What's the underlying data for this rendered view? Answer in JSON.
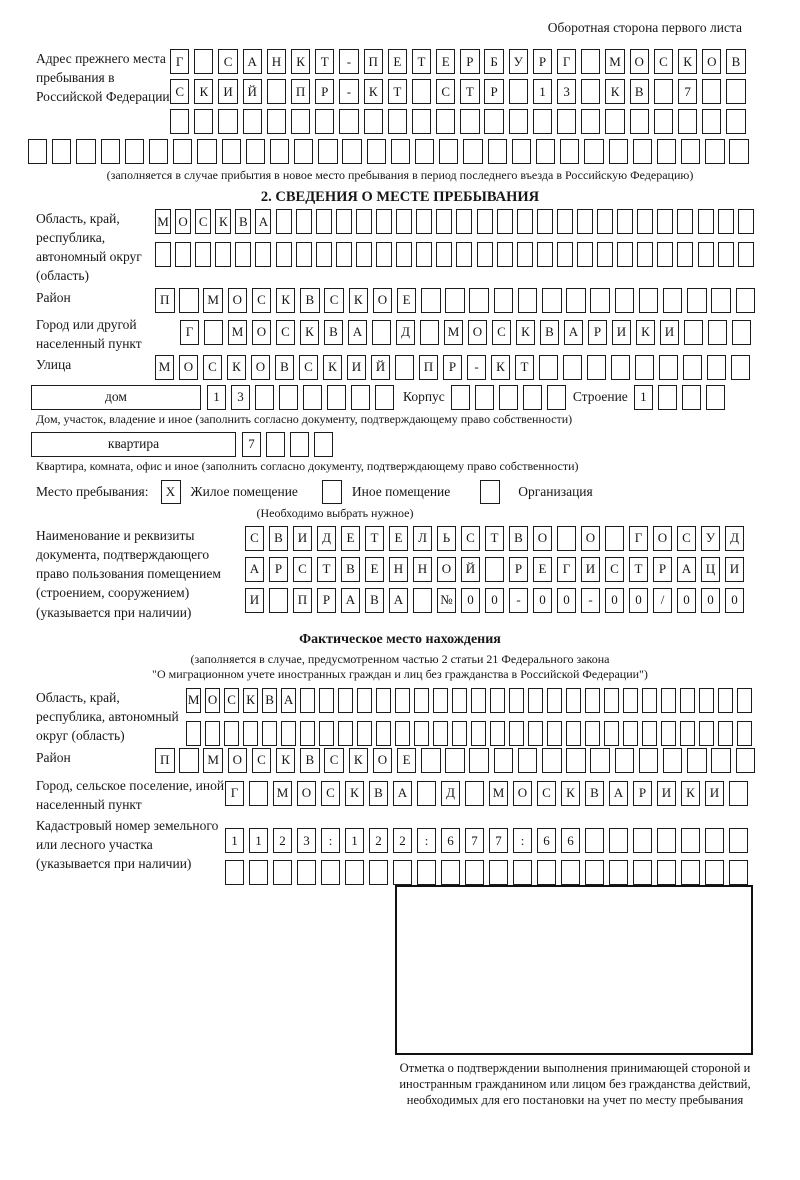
{
  "page_note": "Оборотная сторона первого листа",
  "prev_address": {
    "label": "Адрес прежнего места пребывания в Российской Федерации",
    "rows": [
      {
        "text": "Г САНКТ-ПЕТЕРБУРГ МОСКОВ",
        "len": 24
      },
      {
        "text": "СКИЙ ПР-КТ СТР 13 КВ 7",
        "len": 24
      },
      {
        "text": "",
        "len": 24
      }
    ],
    "overflow_row": {
      "text": "",
      "len": 30
    },
    "caption": "(заполняется в случае прибытия в новое место пребывания в период последнего въезда в Российскую Федерацию)"
  },
  "section2": {
    "title": "2. СВЕДЕНИЯ О МЕСТЕ ПРЕБЫВАНИЯ",
    "region": {
      "label": "Область, край, республика, автономный округ (область)",
      "rows": [
        {
          "text": "МОСКВА",
          "len": 30
        },
        {
          "text": "",
          "len": 30
        }
      ]
    },
    "district": {
      "label": "Район",
      "row": {
        "text": "П МОСКВСКОЕ",
        "len": 25
      }
    },
    "city": {
      "label": "Город или другой населенный пункт",
      "row": {
        "text": "Г МОСКВА Д МОСКВАРИКИ",
        "len": 24
      }
    },
    "street": {
      "label": "Улица",
      "row": {
        "text": "МОСКОВСКИЙ ПР-КТ",
        "len": 25
      }
    },
    "house": {
      "box_label": "дом",
      "row": {
        "text": "13",
        "len": 8
      },
      "korpus_label": "Корпус",
      "korpus_row": {
        "text": "",
        "len": 5
      },
      "stroenie_label": "Строение",
      "stroenie_row": {
        "text": "1",
        "len": 4
      },
      "caption": "Дом, участок, владение и иное (заполнить согласно документу, подтверждающему право собственности)"
    },
    "apartment": {
      "box_label": "квартира",
      "row": {
        "text": "7",
        "len": 4
      },
      "caption": "Квартира, комната, офис и иное (заполнить согласно документу, подтверждающему право собственности)"
    },
    "stay": {
      "label": "Место пребывания:",
      "options": [
        {
          "mark": "X",
          "label": "Жилое помещение"
        },
        {
          "mark": "",
          "label": "Иное помещение"
        },
        {
          "mark": "",
          "label": "Организация"
        }
      ],
      "note": "(Необходимо выбрать нужное)"
    },
    "document": {
      "label": "Наименование и реквизиты документа, подтверждающего право пользования помещением (строением, сооружением) (указывается при наличии)",
      "rows": [
        {
          "text": "СВИДЕТЕЛЬСТВО О ГОСУД",
          "len": 21
        },
        {
          "text": "АРСТВЕННОЙ РЕГИСТРАЦИ",
          "len": 21
        },
        {
          "text": "И ПРАВА №00-00-00/000",
          "len": 21
        }
      ]
    }
  },
  "actual_location": {
    "title": "Фактическое место нахождения",
    "subtitle_line1": "(заполняется в случае, предусмотренном частью 2 статьи 21 Федерального закона",
    "subtitle_line2": "\"О миграционном учете иностранных граждан и лиц без гражданства в Российской Федерации\")",
    "region": {
      "label": "Область, край, республика, автономный округ (область)",
      "rows": [
        {
          "text": "МОСКВА",
          "len": 30
        },
        {
          "text": "",
          "len": 30
        }
      ]
    },
    "district": {
      "label": "Район",
      "row": {
        "text": "П МОСКВСКОЕ",
        "len": 25
      }
    },
    "city": {
      "label": "Город, сельское поселение, иной населенный пункт",
      "row": {
        "text": "Г МОСКВА Д МОСКВАРИКИ",
        "len": 22
      }
    },
    "cadastre": {
      "label": "Кадастровый номер земельного или лесного участка (указывается при наличии)",
      "rows": [
        {
          "text": "1123:122:677:66",
          "len": 22
        },
        {
          "text": "",
          "len": 22
        }
      ]
    },
    "stamp_note": "Отметка о подтверждении выполнения принимающей стороной и иностранным гражданином или лицом без гражданства действий, необходимых для его постановки на учет по месту пребывания"
  }
}
